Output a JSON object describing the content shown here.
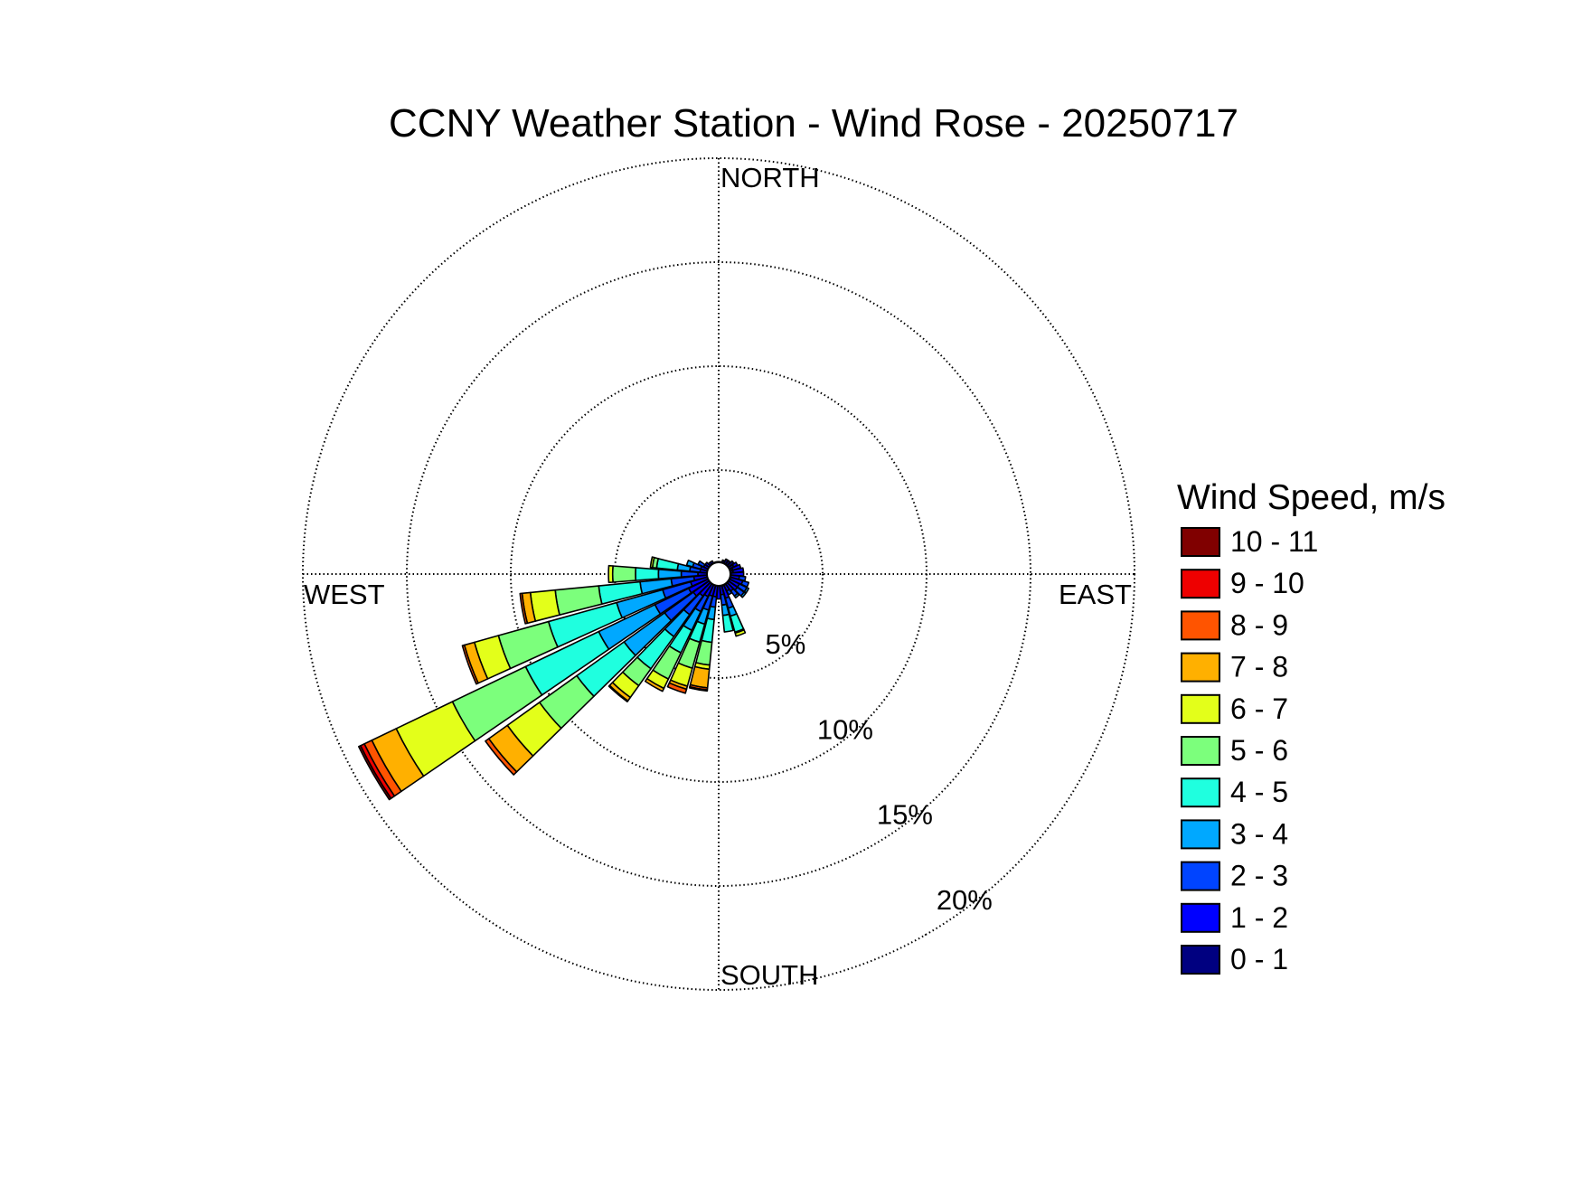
{
  "chart_data": {
    "type": "windrose",
    "title": "CCNY Weather Station - Wind Rose - 20250717",
    "directions": {
      "north": "NORTH",
      "east": "EAST",
      "south": "SOUTH",
      "west": "WEST"
    },
    "radial_ticks": [
      5,
      10,
      15,
      20
    ],
    "radial_tick_labels": [
      "5%",
      "10%",
      "15%",
      "20%"
    ],
    "radial_max": 20,
    "legend_title": "Wind Speed, m/s",
    "speed_bins": [
      {
        "label": "0 - 1",
        "color": "#000080"
      },
      {
        "label": "1 - 2",
        "color": "#0000ff"
      },
      {
        "label": "2 - 3",
        "color": "#0044ff"
      },
      {
        "label": "3 - 4",
        "color": "#00a8ff"
      },
      {
        "label": "4 - 5",
        "color": "#1fffdf"
      },
      {
        "label": "5 - 6",
        "color": "#7cff7c"
      },
      {
        "label": "6 - 7",
        "color": "#e3ff1a"
      },
      {
        "label": "7 - 8",
        "color": "#ffb000"
      },
      {
        "label": "8 - 9",
        "color": "#ff5400"
      },
      {
        "label": "9 - 10",
        "color": "#ee0000"
      },
      {
        "label": "10 - 11",
        "color": "#800000"
      }
    ],
    "sector_width_deg": 10,
    "units": "percent of observations (cumulative radius)",
    "sectors": [
      {
        "dir": 0,
        "cum": [
          0.6
        ]
      },
      {
        "dir": 10,
        "cum": [
          0.6
        ]
      },
      {
        "dir": 20,
        "cum": [
          0.7
        ]
      },
      {
        "dir": 30,
        "cum": [
          0.8
        ]
      },
      {
        "dir": 40,
        "cum": [
          0.8
        ]
      },
      {
        "dir": 50,
        "cum": [
          0.9
        ]
      },
      {
        "dir": 60,
        "cum": [
          0.8,
          1.0
        ]
      },
      {
        "dir": 70,
        "cum": [
          0.7,
          1.1
        ]
      },
      {
        "dir": 80,
        "cum": [
          0.7,
          1.2
        ]
      },
      {
        "dir": 90,
        "cum": [
          0.6,
          1.2
        ]
      },
      {
        "dir": 100,
        "cum": [
          0.6,
          1.0,
          1.3
        ]
      },
      {
        "dir": 110,
        "cum": [
          0.6,
          1.2,
          1.5
        ]
      },
      {
        "dir": 120,
        "cum": [
          0.6,
          1.1,
          1.5,
          1.6
        ]
      },
      {
        "dir": 130,
        "cum": [
          0.6,
          1.1,
          1.5,
          1.6
        ]
      },
      {
        "dir": 140,
        "cum": [
          0.6,
          1.0,
          1.3,
          1.4
        ]
      },
      {
        "dir": 150,
        "cum": [
          0.6,
          0.9,
          1.1
        ]
      },
      {
        "dir": 160,
        "cum": [
          0.6,
          1.2,
          1.7,
          2.1,
          2.9,
          2.95,
          3.1
        ]
      },
      {
        "dir": 170,
        "cum": [
          0.5,
          1.0,
          1.5,
          2.0,
          2.8
        ]
      },
      {
        "dir": 180,
        "cum": [
          0.5,
          1.2
        ]
      },
      {
        "dir": 190,
        "cum": [
          0.5,
          1.1,
          1.6,
          2.2,
          3.3,
          4.4,
          4.6,
          5.5,
          5.6,
          5.65
        ]
      },
      {
        "dir": 200,
        "cum": [
          0.5,
          1.1,
          1.8,
          2.5,
          3.4,
          4.7,
          5.6,
          5.75,
          5.95
        ]
      },
      {
        "dir": 210,
        "cum": [
          0.5,
          1.2,
          2.0,
          3.0,
          4.2,
          5.6,
          6.1,
          6.25
        ]
      },
      {
        "dir": 220,
        "cum": [
          0.5,
          1.3,
          2.4,
          3.7,
          5.6,
          6.6,
          7.3,
          7.5,
          7.55
        ]
      },
      {
        "dir": 230,
        "cum": [
          0.5,
          1.5,
          3.2,
          5.6,
          8.4,
          10.6,
          12.5,
          13.6,
          13.8
        ]
      },
      {
        "dir": 240,
        "cum": [
          0.5,
          1.6,
          3.4,
          6.4,
          10.3,
          14.2,
          17.2,
          18.5,
          18.9,
          19.1,
          19.2
        ]
      },
      {
        "dir": 250,
        "cum": [
          0.5,
          1.4,
          2.8,
          5.1,
          8.5,
          11.0,
          12.2,
          12.7,
          12.8
        ]
      },
      {
        "dir": 260,
        "cum": [
          0.5,
          1.2,
          2.3,
          3.8,
          5.8,
          7.9,
          9.1,
          9.5,
          9.6
        ]
      },
      {
        "dir": 270,
        "cum": [
          0.5,
          1.0,
          1.8,
          2.9,
          4.0,
          5.1,
          5.3
        ]
      },
      {
        "dir": 280,
        "cum": [
          0.5,
          0.9,
          1.4,
          2.0,
          3.0,
          3.2,
          3.3
        ]
      },
      {
        "dir": 290,
        "cum": [
          0.5,
          0.9,
          1.3,
          1.6
        ]
      },
      {
        "dir": 300,
        "cum": [
          0.5,
          0.8,
          1.1
        ]
      },
      {
        "dir": 310,
        "cum": [
          0.5,
          0.8
        ]
      },
      {
        "dir": 320,
        "cum": [
          0.5,
          0.7
        ]
      },
      {
        "dir": 330,
        "cum": [
          0.5,
          0.7
        ]
      },
      {
        "dir": 340,
        "cum": [
          0.5,
          0.6
        ]
      },
      {
        "dir": 350,
        "cum": [
          0.6
        ]
      }
    ]
  }
}
